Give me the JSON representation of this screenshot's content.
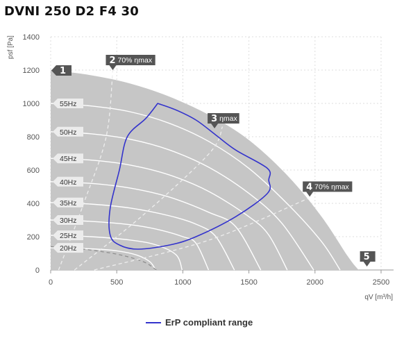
{
  "page": {
    "title": "DVNI 250 D2 F4 30"
  },
  "chart_data": {
    "type": "line",
    "title": "DVNI 250 D2 F4 30",
    "xlabel": "qV [m³/h]",
    "ylabel": "psf [Pa]",
    "xlim": [
      0,
      2500
    ],
    "ylim": [
      0,
      1400
    ],
    "xticks": [
      0,
      500,
      1000,
      1500,
      2000,
      2500
    ],
    "yticks": [
      0,
      200,
      400,
      600,
      800,
      1000,
      1200,
      1400
    ],
    "grid": true,
    "legend": {
      "position": "bottom-center",
      "entries": [
        {
          "label": "ErP compliant range",
          "color": "#3333cc"
        }
      ]
    },
    "colors": {
      "operating_area": "#c6c6c6",
      "speed_curves": "#ffffff",
      "erp_range": "#3333cc",
      "marker": "#555555",
      "grid": "#dddddd"
    },
    "speed_curves": [
      {
        "name": "55Hz",
        "points": [
          [
            0,
            1000
          ],
          [
            300,
            985
          ],
          [
            600,
            950
          ],
          [
            900,
            880
          ],
          [
            1200,
            770
          ],
          [
            1500,
            610
          ],
          [
            1800,
            390
          ],
          [
            2050,
            170
          ],
          [
            2190,
            0
          ]
        ]
      },
      {
        "name": "50Hz",
        "points": [
          [
            0,
            830
          ],
          [
            300,
            818
          ],
          [
            600,
            785
          ],
          [
            900,
            720
          ],
          [
            1200,
            615
          ],
          [
            1500,
            460
          ],
          [
            1750,
            280
          ],
          [
            1990,
            0
          ]
        ]
      },
      {
        "name": "45Hz",
        "points": [
          [
            0,
            670
          ],
          [
            300,
            660
          ],
          [
            600,
            630
          ],
          [
            900,
            570
          ],
          [
            1200,
            470
          ],
          [
            1500,
            320
          ],
          [
            1650,
            210
          ],
          [
            1790,
            0
          ]
        ]
      },
      {
        "name": "40Hz",
        "points": [
          [
            0,
            530
          ],
          [
            300,
            520
          ],
          [
            600,
            492
          ],
          [
            900,
            437
          ],
          [
            1200,
            345
          ],
          [
            1400,
            260
          ],
          [
            1590,
            0
          ]
        ]
      },
      {
        "name": "35Hz",
        "points": [
          [
            0,
            405
          ],
          [
            300,
            396
          ],
          [
            600,
            372
          ],
          [
            900,
            325
          ],
          [
            1100,
            275
          ],
          [
            1250,
            200
          ],
          [
            1390,
            0
          ]
        ]
      },
      {
        "name": "30Hz",
        "points": [
          [
            0,
            300
          ],
          [
            300,
            292
          ],
          [
            600,
            272
          ],
          [
            800,
            245
          ],
          [
            1000,
            200
          ],
          [
            1100,
            160
          ],
          [
            1195,
            0
          ]
        ]
      },
      {
        "name": "25Hz",
        "points": [
          [
            0,
            208
          ],
          [
            300,
            200
          ],
          [
            600,
            180
          ],
          [
            800,
            150
          ],
          [
            950,
            90
          ],
          [
            995,
            0
          ]
        ]
      },
      {
        "name": "20Hz",
        "points": [
          [
            0,
            133
          ],
          [
            300,
            127
          ],
          [
            500,
            115
          ],
          [
            650,
            90
          ],
          [
            750,
            50
          ],
          [
            795,
            0
          ]
        ]
      }
    ],
    "efficiency_lines": [
      {
        "name": "70% ηmax",
        "points": [
          [
            60,
            0
          ],
          [
            250,
            400
          ],
          [
            420,
            800
          ],
          [
            470,
            1200
          ]
        ]
      },
      {
        "name": "ηmax",
        "points": [
          [
            180,
            0
          ],
          [
            700,
            330
          ],
          [
            1200,
            700
          ],
          [
            1300,
            860
          ]
        ]
      },
      {
        "name": "70% ηmax",
        "points": [
          [
            330,
            0
          ],
          [
            1200,
            180
          ],
          [
            1950,
            430
          ]
        ]
      }
    ],
    "min_curve": {
      "points": [
        [
          0,
          140
        ],
        [
          200,
          130
        ],
        [
          500,
          95
        ],
        [
          700,
          50
        ],
        [
          800,
          0
        ]
      ]
    },
    "erp_compliant_range": {
      "name": "ErP compliant range",
      "points": [
        [
          810,
          1000
        ],
        [
          950,
          960
        ],
        [
          1100,
          900
        ],
        [
          1250,
          810
        ],
        [
          1400,
          720
        ],
        [
          1640,
          610
        ],
        [
          1650,
          540
        ],
        [
          1640,
          460
        ],
        [
          1400,
          320
        ],
        [
          1100,
          200
        ],
        [
          900,
          150
        ],
        [
          660,
          125
        ],
        [
          520,
          150
        ],
        [
          450,
          210
        ],
        [
          450,
          370
        ],
        [
          520,
          600
        ],
        [
          580,
          800
        ],
        [
          720,
          910
        ],
        [
          810,
          1000
        ]
      ]
    },
    "area_boundary": [
      [
        0,
        1200
      ],
      [
        300,
        1170
      ],
      [
        600,
        1120
      ],
      [
        900,
        1040
      ],
      [
        1200,
        930
      ],
      [
        1500,
        780
      ],
      [
        1800,
        560
      ],
      [
        2050,
        320
      ],
      [
        2250,
        80
      ],
      [
        2330,
        0
      ]
    ],
    "markers": [
      {
        "id": "1",
        "label": "",
        "at": [
          0,
          1200
        ]
      },
      {
        "id": "2",
        "label": "70% ηmax",
        "at": [
          470,
          1200
        ]
      },
      {
        "id": "3",
        "label": "ηmax",
        "at": [
          1240,
          850
        ]
      },
      {
        "id": "4",
        "label": "70% ηmax",
        "at": [
          1960,
          440
        ]
      },
      {
        "id": "5",
        "label": "",
        "at": [
          2330,
          0
        ]
      }
    ]
  }
}
